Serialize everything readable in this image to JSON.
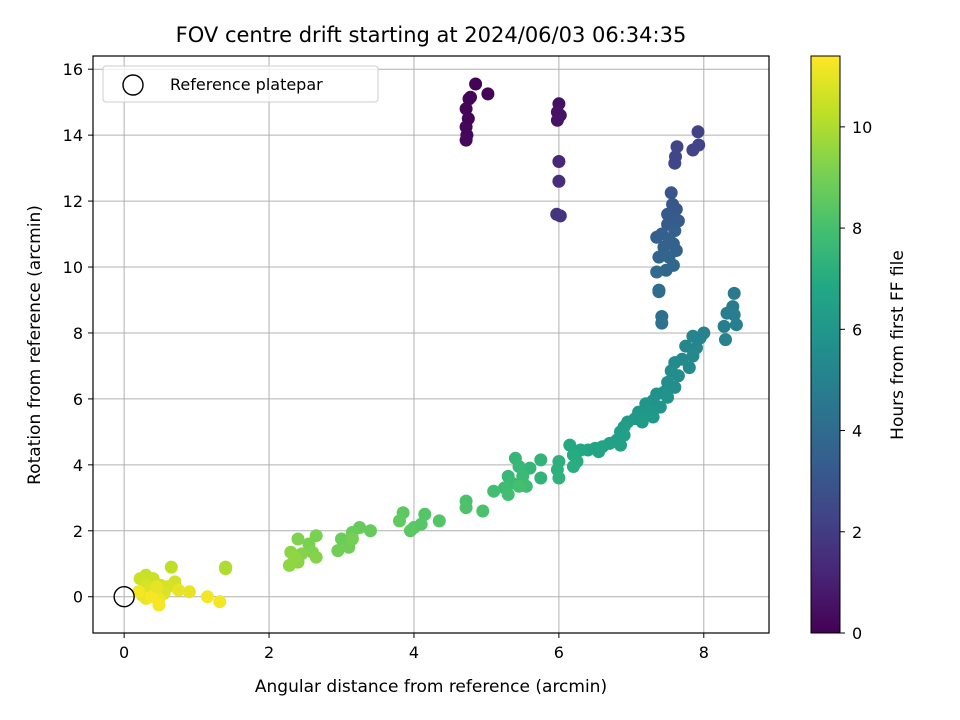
{
  "chart_data": {
    "type": "scatter",
    "title": "FOV centre drift starting at 2024/06/03 06:34:35",
    "xlabel": "Angular distance from reference (arcmin)",
    "ylabel": "Rotation from reference (arcmin)",
    "xlim": [
      -0.43,
      8.9
    ],
    "ylim": [
      -1.1,
      16.4
    ],
    "xticks": [
      0,
      2,
      4,
      6,
      8
    ],
    "yticks": [
      0,
      2,
      4,
      6,
      8,
      10,
      12,
      14,
      16
    ],
    "grid": true,
    "legend": {
      "location": "upper-left",
      "entries": [
        "Reference platepar"
      ]
    },
    "reference_point": {
      "x": 0,
      "y": 0,
      "label": "Reference platepar"
    },
    "colorbar": {
      "label": "Hours from first FF file",
      "colormap": "viridis",
      "range": [
        0,
        11.4
      ],
      "ticks": [
        0,
        2,
        4,
        6,
        8,
        10
      ]
    },
    "points": [
      {
        "x": 4.85,
        "y": 15.55,
        "c": 0.05
      },
      {
        "x": 5.02,
        "y": 15.25,
        "c": 0.1
      },
      {
        "x": 4.76,
        "y": 15.1,
        "c": 0.1
      },
      {
        "x": 4.72,
        "y": 14.8,
        "c": 0.15
      },
      {
        "x": 4.75,
        "y": 14.5,
        "c": 0.15
      },
      {
        "x": 4.72,
        "y": 14.25,
        "c": 0.2
      },
      {
        "x": 4.73,
        "y": 14.0,
        "c": 0.2
      },
      {
        "x": 4.72,
        "y": 13.85,
        "c": 0.25
      },
      {
        "x": 4.78,
        "y": 15.15,
        "c": 0.1
      },
      {
        "x": 6.0,
        "y": 14.95,
        "c": 0.5
      },
      {
        "x": 5.98,
        "y": 14.7,
        "c": 0.55
      },
      {
        "x": 6.02,
        "y": 14.6,
        "c": 0.55
      },
      {
        "x": 5.98,
        "y": 14.45,
        "c": 0.6
      },
      {
        "x": 6.0,
        "y": 13.2,
        "c": 1.3
      },
      {
        "x": 6.0,
        "y": 12.6,
        "c": 1.5
      },
      {
        "x": 5.97,
        "y": 11.6,
        "c": 1.7
      },
      {
        "x": 6.02,
        "y": 11.55,
        "c": 1.7
      },
      {
        "x": 7.63,
        "y": 13.65,
        "c": 2.3
      },
      {
        "x": 7.61,
        "y": 13.35,
        "c": 2.4
      },
      {
        "x": 7.6,
        "y": 13.15,
        "c": 2.4
      },
      {
        "x": 7.92,
        "y": 14.1,
        "c": 2.2
      },
      {
        "x": 7.93,
        "y": 13.7,
        "c": 2.3
      },
      {
        "x": 7.85,
        "y": 13.55,
        "c": 2.3
      },
      {
        "x": 7.55,
        "y": 12.25,
        "c": 3.0
      },
      {
        "x": 7.57,
        "y": 11.9,
        "c": 3.1
      },
      {
        "x": 7.62,
        "y": 11.75,
        "c": 3.1
      },
      {
        "x": 7.5,
        "y": 11.6,
        "c": 3.2
      },
      {
        "x": 7.58,
        "y": 11.45,
        "c": 3.2
      },
      {
        "x": 7.65,
        "y": 11.4,
        "c": 3.3
      },
      {
        "x": 7.5,
        "y": 11.3,
        "c": 3.3
      },
      {
        "x": 7.6,
        "y": 11.1,
        "c": 3.4
      },
      {
        "x": 7.42,
        "y": 11.0,
        "c": 3.4
      },
      {
        "x": 7.35,
        "y": 10.9,
        "c": 3.4
      },
      {
        "x": 7.52,
        "y": 10.85,
        "c": 3.5
      },
      {
        "x": 7.58,
        "y": 10.7,
        "c": 3.5
      },
      {
        "x": 7.45,
        "y": 10.6,
        "c": 3.6
      },
      {
        "x": 7.62,
        "y": 10.5,
        "c": 3.6
      },
      {
        "x": 7.38,
        "y": 10.3,
        "c": 3.7
      },
      {
        "x": 7.52,
        "y": 10.3,
        "c": 3.7
      },
      {
        "x": 7.58,
        "y": 10.05,
        "c": 3.8
      },
      {
        "x": 7.48,
        "y": 9.9,
        "c": 3.8
      },
      {
        "x": 7.35,
        "y": 9.85,
        "c": 3.9
      },
      {
        "x": 7.38,
        "y": 9.3,
        "c": 4.0
      },
      {
        "x": 7.38,
        "y": 9.25,
        "c": 4.0
      },
      {
        "x": 7.42,
        "y": 8.5,
        "c": 4.2
      },
      {
        "x": 7.42,
        "y": 8.3,
        "c": 4.3
      },
      {
        "x": 8.42,
        "y": 9.2,
        "c": 4.6
      },
      {
        "x": 8.4,
        "y": 8.8,
        "c": 4.7
      },
      {
        "x": 8.32,
        "y": 8.6,
        "c": 4.8
      },
      {
        "x": 8.42,
        "y": 8.55,
        "c": 4.8
      },
      {
        "x": 8.45,
        "y": 8.25,
        "c": 4.9
      },
      {
        "x": 8.28,
        "y": 8.2,
        "c": 4.9
      },
      {
        "x": 8.3,
        "y": 7.8,
        "c": 5.0
      },
      {
        "x": 8.0,
        "y": 8.0,
        "c": 5.0
      },
      {
        "x": 7.85,
        "y": 7.9,
        "c": 5.1
      },
      {
        "x": 7.95,
        "y": 7.85,
        "c": 5.1
      },
      {
        "x": 7.75,
        "y": 7.6,
        "c": 5.2
      },
      {
        "x": 7.9,
        "y": 7.55,
        "c": 5.2
      },
      {
        "x": 7.85,
        "y": 7.3,
        "c": 5.3
      },
      {
        "x": 7.7,
        "y": 7.2,
        "c": 5.3
      },
      {
        "x": 7.6,
        "y": 7.1,
        "c": 5.4
      },
      {
        "x": 7.8,
        "y": 6.95,
        "c": 5.4
      },
      {
        "x": 7.55,
        "y": 6.85,
        "c": 5.5
      },
      {
        "x": 7.65,
        "y": 6.7,
        "c": 5.5
      },
      {
        "x": 7.5,
        "y": 6.5,
        "c": 5.6
      },
      {
        "x": 7.6,
        "y": 6.35,
        "c": 5.6
      },
      {
        "x": 7.45,
        "y": 6.2,
        "c": 5.7
      },
      {
        "x": 7.35,
        "y": 6.15,
        "c": 5.7
      },
      {
        "x": 7.5,
        "y": 6.05,
        "c": 5.8
      },
      {
        "x": 7.3,
        "y": 5.95,
        "c": 5.8
      },
      {
        "x": 7.2,
        "y": 5.85,
        "c": 5.9
      },
      {
        "x": 7.4,
        "y": 5.75,
        "c": 5.9
      },
      {
        "x": 7.25,
        "y": 5.6,
        "c": 6.0
      },
      {
        "x": 7.1,
        "y": 5.6,
        "c": 6.0
      },
      {
        "x": 7.3,
        "y": 5.45,
        "c": 6.1
      },
      {
        "x": 7.05,
        "y": 5.4,
        "c": 6.1
      },
      {
        "x": 7.15,
        "y": 5.3,
        "c": 6.2
      },
      {
        "x": 6.95,
        "y": 5.3,
        "c": 6.2
      },
      {
        "x": 6.9,
        "y": 5.15,
        "c": 6.3
      },
      {
        "x": 6.85,
        "y": 5.0,
        "c": 6.3
      },
      {
        "x": 6.9,
        "y": 4.9,
        "c": 6.4
      },
      {
        "x": 6.8,
        "y": 4.75,
        "c": 6.4
      },
      {
        "x": 6.7,
        "y": 4.65,
        "c": 6.5
      },
      {
        "x": 6.85,
        "y": 4.6,
        "c": 6.5
      },
      {
        "x": 6.6,
        "y": 4.55,
        "c": 6.6
      },
      {
        "x": 6.5,
        "y": 4.5,
        "c": 6.6
      },
      {
        "x": 6.4,
        "y": 4.45,
        "c": 6.7
      },
      {
        "x": 6.55,
        "y": 4.4,
        "c": 6.7
      },
      {
        "x": 6.3,
        "y": 4.45,
        "c": 6.8
      },
      {
        "x": 6.15,
        "y": 4.6,
        "c": 6.9
      },
      {
        "x": 6.2,
        "y": 4.3,
        "c": 7.0
      },
      {
        "x": 6.25,
        "y": 4.1,
        "c": 7.0
      },
      {
        "x": 6.2,
        "y": 3.95,
        "c": 7.1
      },
      {
        "x": 6.0,
        "y": 4.1,
        "c": 7.2
      },
      {
        "x": 5.98,
        "y": 3.85,
        "c": 7.2
      },
      {
        "x": 6.0,
        "y": 3.6,
        "c": 7.3
      },
      {
        "x": 5.75,
        "y": 4.15,
        "c": 7.4
      },
      {
        "x": 5.75,
        "y": 3.6,
        "c": 7.4
      },
      {
        "x": 5.6,
        "y": 3.9,
        "c": 7.5
      },
      {
        "x": 5.4,
        "y": 4.2,
        "c": 7.5
      },
      {
        "x": 5.45,
        "y": 3.95,
        "c": 7.6
      },
      {
        "x": 5.3,
        "y": 3.65,
        "c": 7.6
      },
      {
        "x": 5.5,
        "y": 3.65,
        "c": 7.7
      },
      {
        "x": 5.35,
        "y": 3.45,
        "c": 7.7
      },
      {
        "x": 5.55,
        "y": 3.35,
        "c": 7.8
      },
      {
        "x": 5.25,
        "y": 3.3,
        "c": 7.8
      },
      {
        "x": 5.1,
        "y": 3.2,
        "c": 7.9
      },
      {
        "x": 5.3,
        "y": 3.1,
        "c": 7.9
      },
      {
        "x": 5.45,
        "y": 3.35,
        "c": 8.0
      },
      {
        "x": 4.95,
        "y": 2.6,
        "c": 8.1
      },
      {
        "x": 4.72,
        "y": 2.9,
        "c": 8.1
      },
      {
        "x": 4.72,
        "y": 2.7,
        "c": 8.2
      },
      {
        "x": 4.35,
        "y": 2.3,
        "c": 8.3
      },
      {
        "x": 4.15,
        "y": 2.5,
        "c": 8.3
      },
      {
        "x": 4.1,
        "y": 2.2,
        "c": 8.4
      },
      {
        "x": 4.0,
        "y": 2.1,
        "c": 8.4
      },
      {
        "x": 3.95,
        "y": 2.0,
        "c": 8.5
      },
      {
        "x": 3.85,
        "y": 2.55,
        "c": 8.5
      },
      {
        "x": 3.8,
        "y": 2.3,
        "c": 8.6
      },
      {
        "x": 3.4,
        "y": 2.0,
        "c": 8.7
      },
      {
        "x": 3.25,
        "y": 2.1,
        "c": 8.7
      },
      {
        "x": 3.15,
        "y": 1.95,
        "c": 8.8
      },
      {
        "x": 3.0,
        "y": 1.75,
        "c": 8.8
      },
      {
        "x": 3.1,
        "y": 1.5,
        "c": 8.9
      },
      {
        "x": 2.95,
        "y": 1.4,
        "c": 8.9
      },
      {
        "x": 3.15,
        "y": 1.75,
        "c": 9.0
      },
      {
        "x": 2.65,
        "y": 1.85,
        "c": 9.1
      },
      {
        "x": 2.55,
        "y": 1.6,
        "c": 9.1
      },
      {
        "x": 2.4,
        "y": 1.75,
        "c": 9.2
      },
      {
        "x": 2.6,
        "y": 1.35,
        "c": 9.2
      },
      {
        "x": 2.65,
        "y": 1.2,
        "c": 9.3
      },
      {
        "x": 2.45,
        "y": 1.3,
        "c": 9.3
      },
      {
        "x": 2.3,
        "y": 1.35,
        "c": 9.4
      },
      {
        "x": 2.4,
        "y": 1.05,
        "c": 9.4
      },
      {
        "x": 2.28,
        "y": 0.95,
        "c": 9.5
      },
      {
        "x": 2.35,
        "y": 1.2,
        "c": 9.5
      },
      {
        "x": 1.4,
        "y": 0.9,
        "c": 10.0
      },
      {
        "x": 1.4,
        "y": 0.85,
        "c": 10.0
      },
      {
        "x": 0.65,
        "y": 0.9,
        "c": 10.3
      },
      {
        "x": 0.3,
        "y": 0.65,
        "c": 10.4
      },
      {
        "x": 0.22,
        "y": 0.55,
        "c": 10.5
      },
      {
        "x": 0.4,
        "y": 0.55,
        "c": 10.5
      },
      {
        "x": 0.5,
        "y": 0.35,
        "c": 10.6
      },
      {
        "x": 0.7,
        "y": 0.45,
        "c": 10.6
      },
      {
        "x": 0.6,
        "y": 0.3,
        "c": 10.7
      },
      {
        "x": 0.3,
        "y": 0.35,
        "c": 10.7
      },
      {
        "x": 0.35,
        "y": 0.2,
        "c": 10.8
      },
      {
        "x": 0.55,
        "y": 0.1,
        "c": 10.8
      },
      {
        "x": 0.42,
        "y": 0.1,
        "c": 10.9
      },
      {
        "x": 0.25,
        "y": 0.05,
        "c": 10.9
      },
      {
        "x": 0.75,
        "y": 0.2,
        "c": 11.0
      },
      {
        "x": 0.9,
        "y": 0.15,
        "c": 11.0
      },
      {
        "x": 0.48,
        "y": -0.05,
        "c": 11.1
      },
      {
        "x": 0.3,
        "y": -0.05,
        "c": 11.1
      },
      {
        "x": 1.15,
        "y": 0.0,
        "c": 11.2
      },
      {
        "x": 1.32,
        "y": -0.15,
        "c": 11.2
      },
      {
        "x": 0.48,
        "y": -0.25,
        "c": 11.3
      },
      {
        "x": 0.38,
        "y": 0.0,
        "c": 11.3
      },
      {
        "x": 0.2,
        "y": 0.15,
        "c": 11.2
      },
      {
        "x": 0.45,
        "y": 0.3,
        "c": 11.0
      }
    ]
  }
}
